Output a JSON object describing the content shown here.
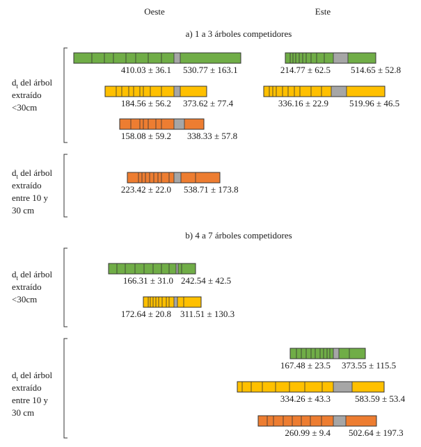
{
  "columns": [
    "Oeste",
    "Este"
  ],
  "colors": {
    "green": "#70ad47",
    "yellow": "#ffc000",
    "orange": "#ed7d31",
    "gap": "#a6a6a6",
    "outline": "#333333"
  },
  "sections": [
    {
      "title": "a) 1 a 3 árboles competidores",
      "groups": [
        {
          "label_prefix": "d",
          "label_sub": "t",
          "label_first": " del árbol",
          "label_rest": [
            "extraído",
            "<30cm"
          ],
          "bars": [
            {
              "side": "oeste",
              "color": "green",
              "left_label": "410.03 ± 36.1",
              "right_label": "530.77 ± 163.1"
            },
            {
              "side": "este",
              "color": "green",
              "left_label": "214.77 ± 62.5",
              "right_label": "514.65 ± 52.8"
            },
            {
              "side": "oeste",
              "color": "yellow",
              "left_label": "184.56 ± 56.2",
              "right_label": "373.62 ± 77.4"
            },
            {
              "side": "este",
              "color": "yellow",
              "left_label": "336.16 ± 22.9",
              "right_label": "519.96 ± 46.5"
            },
            {
              "side": "oeste",
              "color": "orange",
              "left_label": "158.08 ± 59.2",
              "right_label": "338.33 ± 57.8"
            }
          ]
        },
        {
          "label_prefix": "d",
          "label_sub": "t",
          "label_first": " del árbol",
          "label_rest": [
            "extraído",
            "entre 10 y",
            "30 cm"
          ],
          "bars": [
            {
              "side": "oeste",
              "color": "orange",
              "left_label": "223.42 ± 22.0",
              "right_label": "538.71 ± 173.8"
            }
          ]
        }
      ]
    },
    {
      "title": "b) 4 a 7 árboles competidores",
      "groups": [
        {
          "label_prefix": "d",
          "label_sub": "t",
          "label_first": " del árbol",
          "label_rest": [
            "extraído",
            "<30cm"
          ],
          "bars": [
            {
              "side": "oeste",
              "color": "green",
              "left_label": "166.31 ± 31.0",
              "right_label": "242.54 ± 42.5"
            },
            {
              "side": "oeste",
              "color": "yellow",
              "left_label": "172.64 ± 20.8",
              "right_label": "311.51 ± 130.3"
            }
          ]
        },
        {
          "label_prefix": "d",
          "label_sub": "t",
          "label_first": " del árbol",
          "label_rest": [
            "extraído",
            "entre 10 y",
            "30 cm"
          ],
          "bars": [
            {
              "side": "este",
              "color": "green",
              "left_label": "167.48 ± 23.5",
              "right_label": "373.55 ± 115.5"
            },
            {
              "side": "este",
              "color": "yellow",
              "left_label": "334.26 ± 43.3",
              "right_label": "583.59 ± 53.4"
            },
            {
              "side": "este",
              "color": "orange",
              "left_label": "260.99 ± 9.4",
              "right_label": "502.64 ± 197.3"
            }
          ]
        }
      ]
    }
  ]
}
